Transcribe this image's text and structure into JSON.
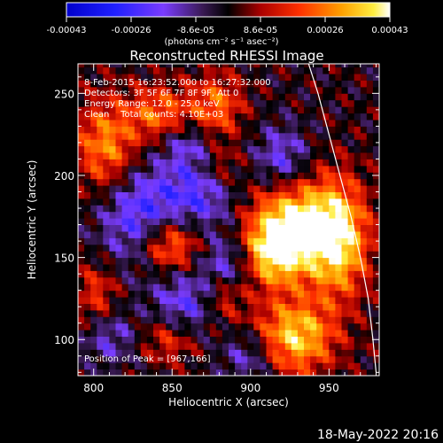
{
  "chart_data": {
    "type": "heatmap",
    "title": "Reconstructed RHESSI Image",
    "xlabel": "Heliocentric X (arcsec)",
    "ylabel": "Heliocentric Y (arcsec)",
    "xlim": [
      790,
      982
    ],
    "ylim": [
      78,
      268
    ],
    "x_ticks": [
      800,
      850,
      900,
      950
    ],
    "y_ticks": [
      100,
      150,
      200,
      250
    ],
    "colorbar": {
      "colormap": "blue-purple-black-red-yellow-white",
      "range": [
        -0.00043,
        0.00043
      ],
      "tick_labels": [
        "-0.00043",
        "-0.00026",
        "-8.6e-05",
        "8.6e-05",
        "0.00026",
        "0.00043"
      ],
      "units": "(photons cm⁻² s⁻¹ asec⁻²)"
    },
    "annotations": [
      "8-Feb-2015 16:23:52.000 to 16:27:32.000",
      "Detectors: 3F 5F 6F 7F 8F 9F, Att 0",
      "Energy Range: 12.0 - 25.0 keV",
      "Clean    Total counts: 4.10E+03",
      "Position of Peak = [967,166]"
    ],
    "peak": [
      967,
      166
    ],
    "limb_curve": [
      [
        937,
        268
      ],
      [
        943,
        250
      ],
      [
        950,
        225
      ],
      [
        957,
        200
      ],
      [
        964,
        175
      ],
      [
        970,
        150
      ],
      [
        975,
        125
      ],
      [
        978,
        100
      ],
      [
        980,
        80
      ]
    ],
    "blobs": [
      {
        "x": 955,
        "y": 162,
        "sx": 14,
        "sy": 24,
        "amp": 1.0
      },
      {
        "x": 925,
        "y": 172,
        "sx": 18,
        "sy": 18,
        "amp": 0.85
      },
      {
        "x": 915,
        "y": 152,
        "sx": 14,
        "sy": 14,
        "amp": 0.8
      },
      {
        "x": 928,
        "y": 102,
        "sx": 18,
        "sy": 16,
        "amp": 0.85
      },
      {
        "x": 848,
        "y": 158,
        "sx": 14,
        "sy": 12,
        "amp": 0.75
      },
      {
        "x": 808,
        "y": 218,
        "sx": 14,
        "sy": 20,
        "amp": 0.65
      },
      {
        "x": 842,
        "y": 238,
        "sx": 14,
        "sy": 12,
        "amp": 0.55
      },
      {
        "x": 878,
        "y": 242,
        "sx": 12,
        "sy": 14,
        "amp": 0.55
      },
      {
        "x": 802,
        "y": 128,
        "sx": 10,
        "sy": 14,
        "amp": 0.4
      },
      {
        "x": 848,
        "y": 100,
        "sx": 12,
        "sy": 10,
        "amp": 0.4
      },
      {
        "x": 883,
        "y": 128,
        "sx": 10,
        "sy": 12,
        "amp": 0.4
      },
      {
        "x": 880,
        "y": 205,
        "sx": 10,
        "sy": 10,
        "amp": 0.35
      }
    ],
    "negatives": [
      {
        "x": 830,
        "y": 175,
        "sx": 18,
        "sy": 22,
        "amp": 0.6
      },
      {
        "x": 868,
        "y": 190,
        "sx": 16,
        "sy": 16,
        "amp": 0.5
      },
      {
        "x": 885,
        "y": 145,
        "sx": 12,
        "sy": 12,
        "amp": 0.5
      },
      {
        "x": 858,
        "y": 122,
        "sx": 14,
        "sy": 14,
        "amp": 0.45
      },
      {
        "x": 920,
        "y": 210,
        "sx": 12,
        "sy": 14,
        "amp": 0.45
      },
      {
        "x": 900,
        "y": 90,
        "sx": 12,
        "sy": 12,
        "amp": 0.4
      },
      {
        "x": 810,
        "y": 102,
        "sx": 12,
        "sy": 12,
        "amp": 0.35
      },
      {
        "x": 860,
        "y": 220,
        "sx": 12,
        "sy": 10,
        "amp": 0.35
      }
    ]
  },
  "footer": {
    "timestamp": "18-May-2022 20:16"
  }
}
